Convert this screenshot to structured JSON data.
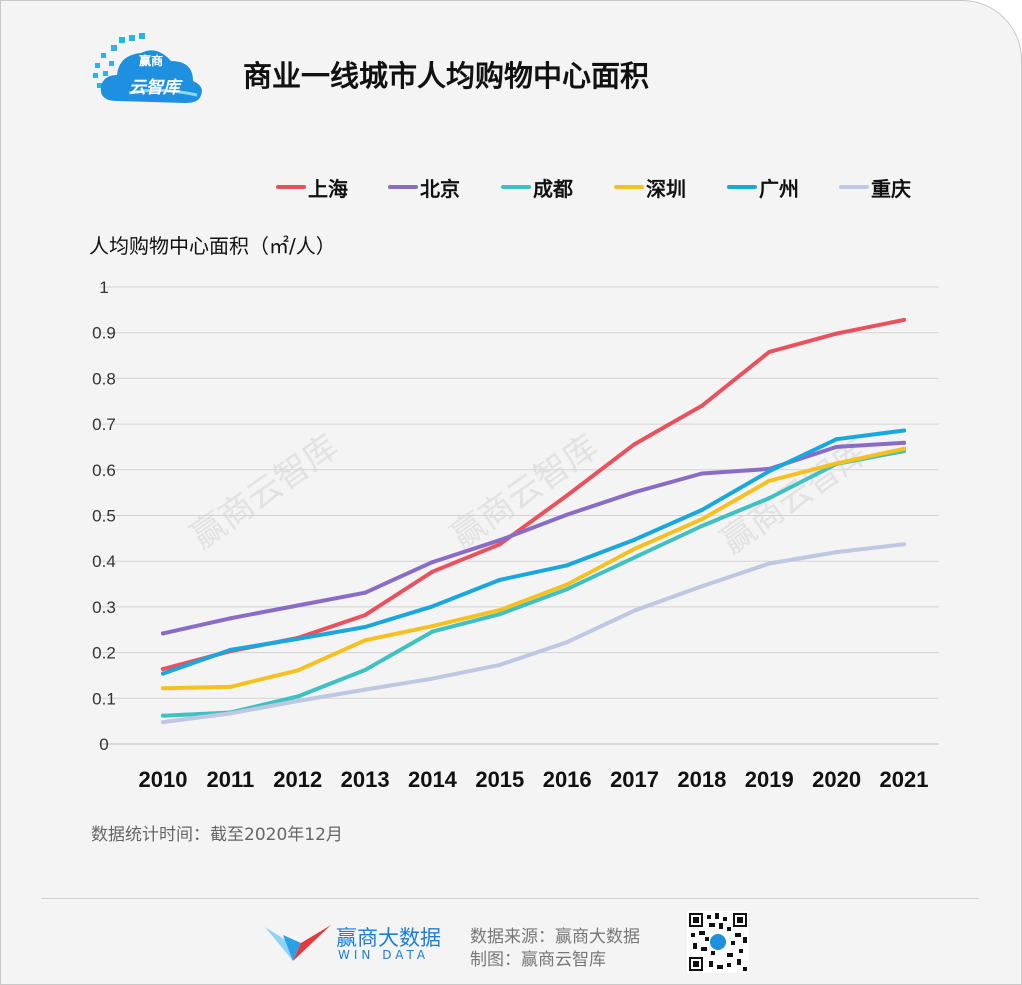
{
  "header": {
    "logo_line1": "赢商",
    "logo_line2": "云智库",
    "title": "商业一线城市人均购物中心面积"
  },
  "watermark": "赢商云智库",
  "chart_data": {
    "type": "line",
    "title": "商业一线城市人均购物中心面积",
    "ylabel": "人均购物中心面积（㎡/人）",
    "xlabel": "",
    "categories": [
      "2010",
      "2011",
      "2012",
      "2013",
      "2014",
      "2015",
      "2016",
      "2017",
      "2018",
      "2019",
      "2020",
      "2021"
    ],
    "ylim": [
      0,
      1
    ],
    "yticks": [
      "0",
      "0.1",
      "0.2",
      "0.3",
      "0.4",
      "0.5",
      "0.6",
      "0.7",
      "0.8",
      "0.9",
      "1"
    ],
    "grid": true,
    "legend_position": "top-right",
    "series": [
      {
        "name": "上海",
        "color": "#e8525e",
        "values": [
          0.164,
          0.203,
          0.232,
          0.282,
          0.377,
          0.437,
          0.544,
          0.656,
          0.74,
          0.858,
          0.898,
          0.928
        ]
      },
      {
        "name": "北京",
        "color": "#8a6cc6",
        "values": [
          0.242,
          0.275,
          0.303,
          0.331,
          0.398,
          0.446,
          0.502,
          0.551,
          0.592,
          0.602,
          0.65,
          0.659
        ]
      },
      {
        "name": "成都",
        "color": "#3ec1c1",
        "values": [
          0.062,
          0.069,
          0.104,
          0.162,
          0.246,
          0.284,
          0.339,
          0.408,
          0.477,
          0.538,
          0.613,
          0.641
        ]
      },
      {
        "name": "深圳",
        "color": "#f5c020",
        "values": [
          0.122,
          0.125,
          0.161,
          0.227,
          0.258,
          0.293,
          0.349,
          0.427,
          0.492,
          0.576,
          0.614,
          0.646
        ]
      },
      {
        "name": "广州",
        "color": "#1aa7dd",
        "values": [
          0.154,
          0.206,
          0.23,
          0.256,
          0.301,
          0.359,
          0.391,
          0.447,
          0.512,
          0.597,
          0.667,
          0.686
        ]
      },
      {
        "name": "重庆",
        "color": "#bfc7e2",
        "values": [
          0.048,
          0.067,
          0.094,
          0.119,
          0.143,
          0.173,
          0.223,
          0.292,
          0.345,
          0.395,
          0.42,
          0.437
        ]
      }
    ]
  },
  "footer": {
    "stat_note": "数据统计时间：截至2020年12月",
    "brand_cn": "赢商大数据",
    "brand_en": "WIN DATA",
    "source": "数据来源：赢商大数据",
    "made_by": "制图：赢商云智库"
  }
}
